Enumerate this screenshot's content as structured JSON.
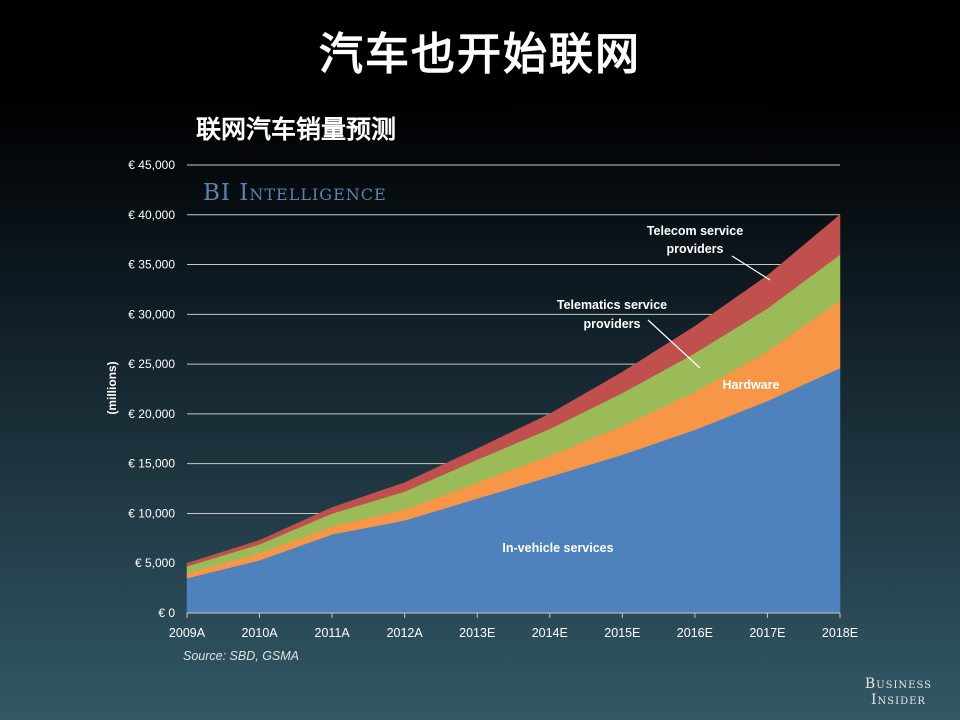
{
  "slide": {
    "title": "汽车也开始联网",
    "logo_line1": "Business",
    "logo_line2": "Insider"
  },
  "chart_data": {
    "type": "area",
    "stacked": true,
    "title": "联网汽车销量预测",
    "watermark": "BI Intelligence",
    "ylabel": "(millions)",
    "xlabel": "",
    "source": "Source: SBD, GSMA",
    "ylim": [
      0,
      45000
    ],
    "yticks": [
      0,
      5000,
      10000,
      15000,
      20000,
      25000,
      30000,
      35000,
      40000,
      45000
    ],
    "ytick_labels": [
      "€ 0",
      "€ 5,000",
      "€ 10,000",
      "€ 15,000",
      "€ 20,000",
      "€ 25,000",
      "€ 30,000",
      "€ 35,000",
      "€ 40,000",
      "€ 45,000"
    ],
    "categories": [
      "2009A",
      "2010A",
      "2011A",
      "2012A",
      "2013E",
      "2014E",
      "2015E",
      "2016E",
      "2017E",
      "2018E"
    ],
    "series": [
      {
        "name": "In-vehicle services",
        "color": "#4f81bd",
        "values": [
          3500,
          5300,
          7900,
          9300,
          11500,
          13700,
          15900,
          18400,
          21300,
          24600
        ]
      },
      {
        "name": "Hardware",
        "color": "#f79646",
        "values": [
          500,
          700,
          800,
          1100,
          1600,
          2100,
          2900,
          3800,
          5000,
          6800
        ]
      },
      {
        "name": "Telematics service providers",
        "color": "#9bbb59",
        "values": [
          700,
          900,
          1300,
          1800,
          2300,
          2700,
          3300,
          3900,
          4300,
          4600
        ]
      },
      {
        "name": "Telecom service providers",
        "color": "#c0504d",
        "values": [
          300,
          400,
          600,
          900,
          1100,
          1500,
          2100,
          2700,
          3300,
          4000
        ]
      }
    ],
    "annotations": {
      "telecom_line1": "Telecom service",
      "telecom_line2": "providers",
      "telematics_line1": "Telematics service",
      "telematics_line2": "providers",
      "hardware": "Hardware",
      "invehicle": "In-vehicle services"
    },
    "grid": true
  }
}
